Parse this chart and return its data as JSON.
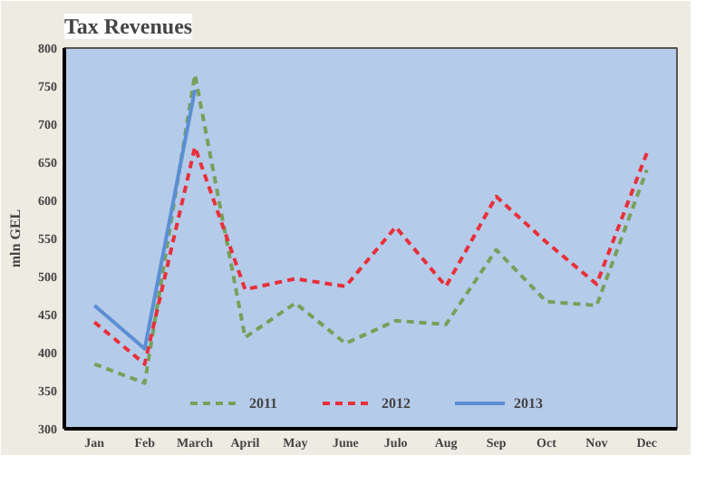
{
  "chart_data": {
    "type": "line",
    "title": "Tax Revenues",
    "ylabel": "mln GEL",
    "categories": [
      "Jan",
      "Feb",
      "March",
      "April",
      "May",
      "June",
      "Julo",
      "Aug",
      "Sep",
      "Oct",
      "Nov",
      "Dec"
    ],
    "ylim": [
      300,
      800
    ],
    "yticks": [
      300,
      350,
      400,
      450,
      500,
      550,
      600,
      650,
      700,
      750,
      800
    ],
    "grid": false,
    "legend": "bottom",
    "marker": "none",
    "series": [
      {
        "name": "2011",
        "color": "#77a05a",
        "line_style": "dashed",
        "values": [
          385,
          360,
          765,
          420,
          465,
          412,
          442,
          437,
          535,
          467,
          462,
          640
        ]
      },
      {
        "name": "2012",
        "color": "#e8303a",
        "line_style": "dashed",
        "values": [
          440,
          385,
          670,
          483,
          497,
          487,
          565,
          487,
          605,
          545,
          490,
          662
        ]
      },
      {
        "name": "2013",
        "color": "#5b8fd4",
        "line_style": "solid",
        "values": [
          462,
          405,
          745,
          null,
          null,
          null,
          null,
          null,
          null,
          null,
          null,
          null
        ]
      }
    ]
  }
}
